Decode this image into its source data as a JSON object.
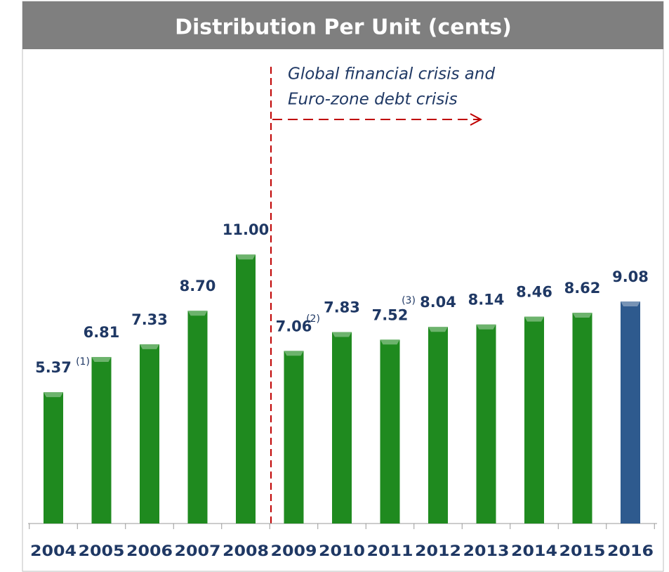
{
  "chart_data": {
    "type": "bar",
    "title": "Distribution Per Unit (cents)",
    "categories": [
      "2004",
      "2005",
      "2006",
      "2007",
      "2008",
      "2009",
      "2010",
      "2011",
      "2012",
      "2013",
      "2014",
      "2015",
      "2016"
    ],
    "values": [
      5.37,
      6.81,
      7.33,
      8.7,
      11.0,
      7.06,
      7.83,
      7.52,
      8.04,
      8.14,
      8.46,
      8.62,
      9.08
    ],
    "value_labels": [
      "5.37",
      "6.81",
      "7.33",
      "8.70",
      "11.00",
      "7.06",
      "7.83",
      "7.52",
      "8.04",
      "8.14",
      "8.46",
      "8.62",
      "9.08"
    ],
    "colors": [
      "#1f8a1f",
      "#1f8a1f",
      "#1f8a1f",
      "#1f8a1f",
      "#1f8a1f",
      "#1f8a1f",
      "#1f8a1f",
      "#1f8a1f",
      "#1f8a1f",
      "#1f8a1f",
      "#1f8a1f",
      "#1f8a1f",
      "#2e5a8e"
    ],
    "annotations": [
      "Global financial crisis and",
      "Euro-zone debt crisis",
      "(1)",
      "(2)",
      "(3)"
    ]
  }
}
